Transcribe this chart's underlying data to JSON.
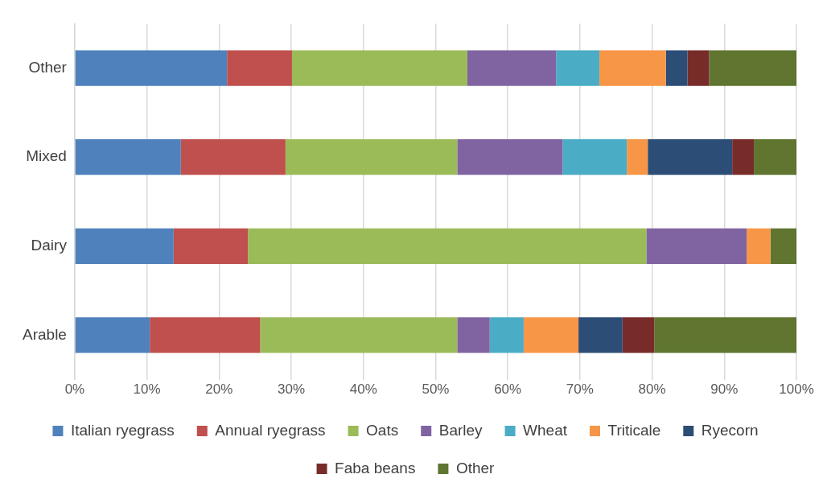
{
  "chart_data": {
    "type": "bar",
    "orientation": "horizontal",
    "stacked": true,
    "categories": [
      "Other",
      "Mixed",
      "Dairy",
      "Arable"
    ],
    "series": [
      {
        "name": "Italian ryegrass",
        "color": "#4f81bd",
        "values": [
          21.1,
          14.7,
          13.7,
          10.4
        ]
      },
      {
        "name": "Annual ryegrass",
        "color": "#c0504d",
        "values": [
          9.0,
          14.5,
          10.3,
          15.3
        ]
      },
      {
        "name": "Oats",
        "color": "#9bbb59",
        "values": [
          24.3,
          23.8,
          55.2,
          27.3
        ]
      },
      {
        "name": "Barley",
        "color": "#8064a2",
        "values": [
          12.3,
          14.6,
          13.9,
          4.5
        ]
      },
      {
        "name": "Wheat",
        "color": "#4bacc6",
        "values": [
          6.0,
          8.9,
          0,
          4.7
        ]
      },
      {
        "name": "Triticale",
        "color": "#f79646",
        "values": [
          9.2,
          2.9,
          3.3,
          7.6
        ]
      },
      {
        "name": "Ryecorn",
        "color": "#2c4d75",
        "values": [
          3.0,
          11.7,
          0,
          6.1
        ]
      },
      {
        "name": "Faba beans",
        "color": "#772c2a",
        "values": [
          3.0,
          3.0,
          0,
          4.4
        ]
      },
      {
        "name": "Other",
        "color": "#5f7530",
        "values": [
          12.1,
          5.9,
          3.6,
          19.7
        ]
      }
    ],
    "xlim": [
      0,
      100
    ],
    "xticks": [
      {
        "value": 0,
        "label": "0%"
      },
      {
        "value": 10,
        "label": "10%"
      },
      {
        "value": 20,
        "label": "20%"
      },
      {
        "value": 30,
        "label": "30%"
      },
      {
        "value": 40,
        "label": "40%"
      },
      {
        "value": 50,
        "label": "50%"
      },
      {
        "value": 60,
        "label": "60%"
      },
      {
        "value": 70,
        "label": "70%"
      },
      {
        "value": 80,
        "label": "80%"
      },
      {
        "value": 90,
        "label": "90%"
      },
      {
        "value": 100,
        "label": "100%"
      }
    ],
    "grid": "x",
    "legend": "bottom"
  }
}
